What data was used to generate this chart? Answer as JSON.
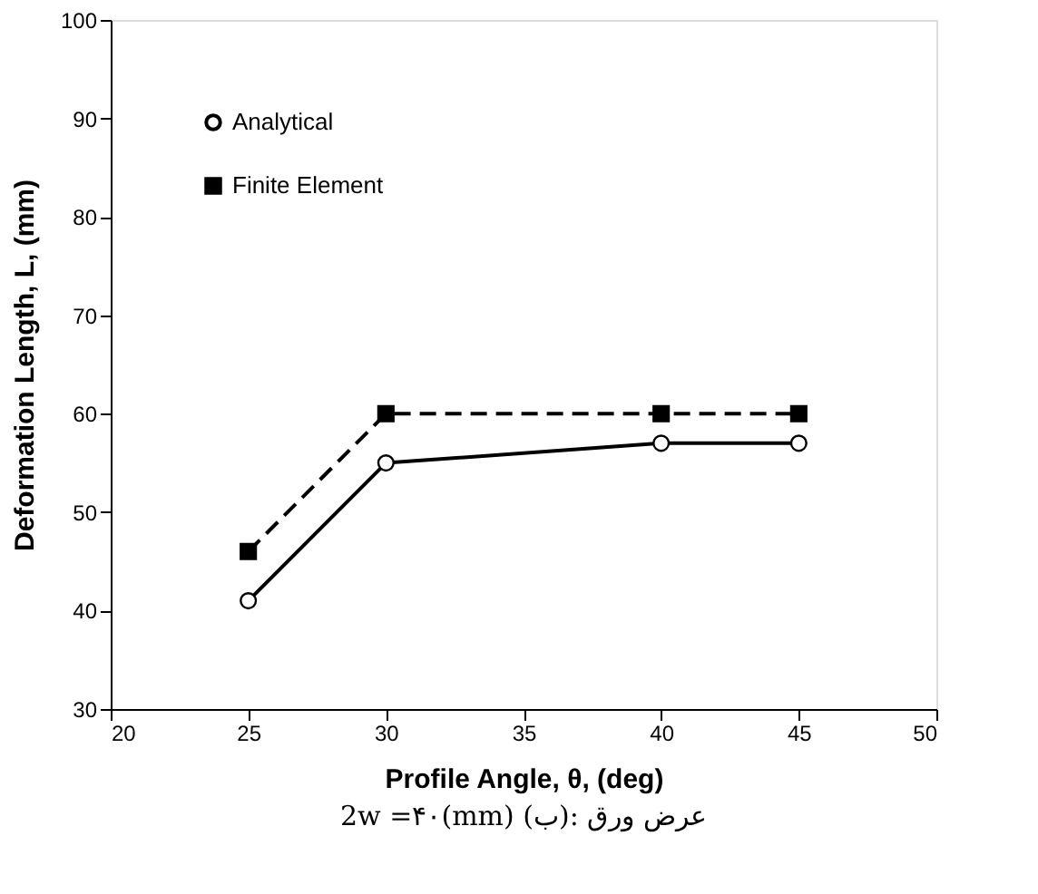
{
  "chart_data": {
    "type": "line",
    "xlabel": "Profile Angle, θ,  (deg)",
    "ylabel": "Deformation Length, L,  (mm)",
    "x": [
      25,
      30,
      40,
      45
    ],
    "series": [
      {
        "name": "Analytical",
        "color": "#000000",
        "values": [
          41,
          55,
          57,
          57
        ],
        "marker": "circle",
        "line_style": "solid"
      },
      {
        "name": "Finite Element",
        "color": "#000000",
        "values": [
          46,
          60,
          60,
          60
        ],
        "marker": "square",
        "line_style": "dashed"
      }
    ],
    "xlim": [
      20,
      50
    ],
    "xticks": [
      20,
      25,
      30,
      35,
      40,
      45,
      50
    ],
    "ylim": [
      30,
      100
    ],
    "yticks": [
      30,
      40,
      50,
      60,
      70,
      80,
      90,
      100
    ],
    "grid": false,
    "legend": "top left",
    "annotations": [
      "2w =۴۰(mm) (ب): عرض ورق"
    ]
  }
}
